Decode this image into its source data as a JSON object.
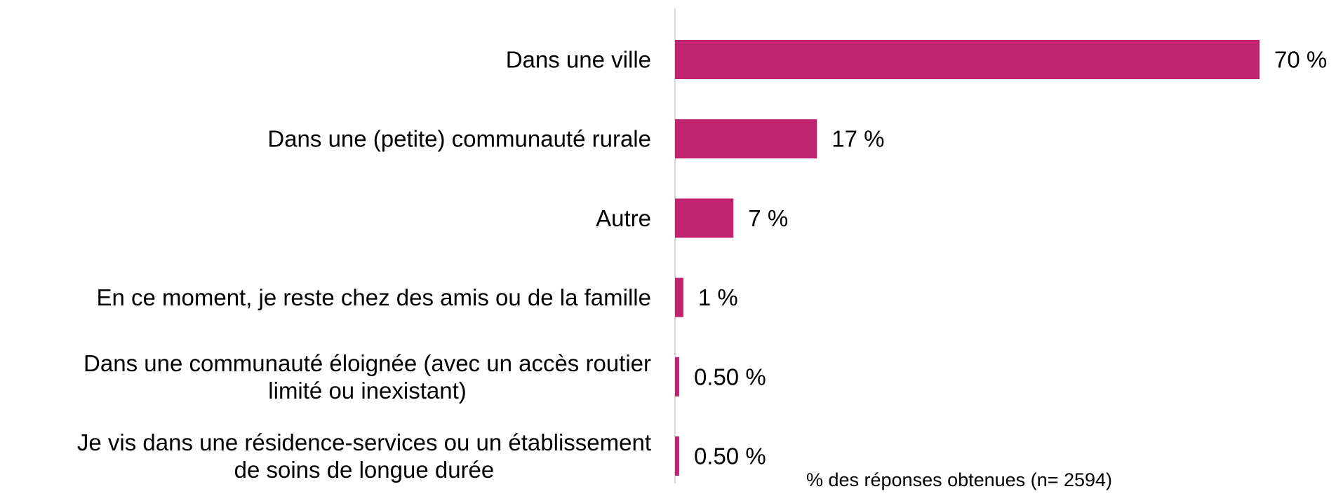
{
  "chart_data": {
    "type": "bar",
    "orientation": "horizontal",
    "categories": [
      [
        "Dans une ville"
      ],
      [
        "Dans une (petite) communauté rurale"
      ],
      [
        "Autre"
      ],
      [
        "En ce moment, je reste chez des amis ou de la famille"
      ],
      [
        "Dans une communauté éloignée (avec un accès routier",
        "limité ou inexistant)"
      ],
      [
        "Je vis dans une résidence-services ou un établissement",
        "de soins de longue durée"
      ]
    ],
    "values": [
      70,
      17,
      7,
      1,
      0.5,
      0.5
    ],
    "value_labels": [
      "70 %",
      "17 %",
      "7 %",
      "1 %",
      "0.50 %",
      "0.50 %"
    ],
    "note": "% des réponses obtenues (n= 2594)",
    "xlim": [
      0,
      70
    ],
    "grid": false,
    "legend": "none",
    "bar_color": "#c0236f",
    "axis_color": "#d9d9d9"
  }
}
